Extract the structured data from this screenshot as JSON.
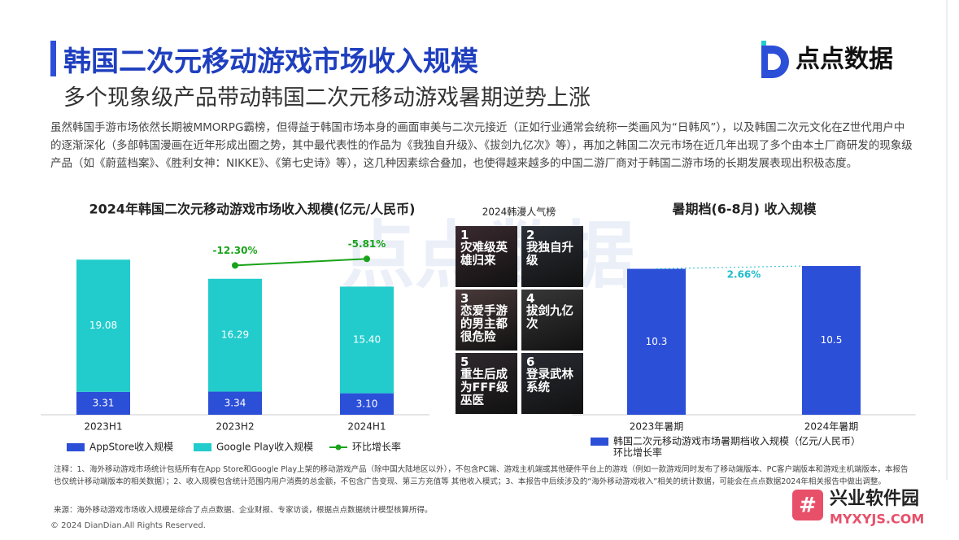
{
  "header": {
    "title": "韩国二次元移动游戏市场收入规模",
    "subtitle": "多个现象级产品带动韩国二次元移动游戏暑期逆势上涨",
    "logo": "点点数据"
  },
  "paragraph": "虽然韩国手游市场依然长期被MMORPG霸榜，但得益于韩国市场本身的画面审美与二次元接近（正如行业通常会统称一类画风为“日韩风”），以及韩国二次元文化在Z世代用户中的逐渐深化（多部韩国漫画在近年形成出圈之势，其中最代表性的作品为《我独自升级》、《拔剑九亿次》等），再加之韩国二次元市场在近几年出现了多个由本土厂商研发的现象级产品（如《蔚蓝档案》、《胜利女神：NIKKE》、《第七史诗》等），这几种因素综合叠加，也使得越来越多的中国二游厂商对于韩国二游市场的长期发展表现出积极态度。",
  "chart_data": [
    {
      "type": "bar",
      "stacked": true,
      "title": "2024年韩国二次元移动游戏市场收入规模(亿元/人民币)",
      "categories": [
        "2023H1",
        "2023H2",
        "2024H1"
      ],
      "ylim": [
        0,
        27
      ],
      "y2lim": [
        -160,
        25
      ],
      "series": [
        {
          "name": "AppStore收入规模",
          "color": "#2c4fd8",
          "values": [
            3.31,
            3.34,
            3.1
          ],
          "value_labels": [
            "3.31",
            "3.34",
            "3.10"
          ]
        },
        {
          "name": "Google Play收入规模",
          "color": "#22cccc",
          "values": [
            19.08,
            16.29,
            15.4
          ],
          "value_labels": [
            "19.08",
            "16.29",
            "15.40"
          ]
        },
        {
          "name": "环比增长率",
          "type": "line",
          "axis": "y2",
          "color": "#1aa31a",
          "values": [
            null,
            -12.3,
            -5.81
          ],
          "value_labels": [
            null,
            "-12.30%",
            "-5.81%"
          ]
        }
      ]
    },
    {
      "type": "bar",
      "title": "暑期档(6-8月) 收入规模",
      "categories": [
        "2023年暑期",
        "2024年暑期"
      ],
      "ylim": [
        0,
        13.2
      ],
      "series": [
        {
          "name": "韩国二次元移动游戏市场暑期档收入规模（亿元/人民币）",
          "color": "#2c4fd8",
          "values": [
            10.3,
            10.5
          ]
        }
      ],
      "growth": {
        "name": "环比增长率",
        "value": 2.66,
        "label": "2.66%"
      }
    }
  ],
  "ranking": {
    "title": "2024韩漫人气榜",
    "items": [
      {
        "rank": 1,
        "title": "灾难级英雄归来"
      },
      {
        "rank": 2,
        "title": "我独自升级"
      },
      {
        "rank": 3,
        "title": "恋爱手游的男主都很危险"
      },
      {
        "rank": 4,
        "title": "拔剑九亿次"
      },
      {
        "rank": 5,
        "title": "重生后成为FFF级巫医"
      },
      {
        "rank": 6,
        "title": "登录武林系统"
      }
    ]
  },
  "notes": "注释：1、海外移动游戏市场统计包括所有在App Store和Google Play上架的移动游戏产品（除中国大陆地区以外），不包含PC端、游戏主机端或其他硬件平台上的游戏（例如一款游戏同时发布了移动端版本、PC客户端版本和游戏主机端版本，本报告也仅统计移动端版本的相关数据）；2、收入规模包含统计范围内用户消费的总金额，不包含广告变现、第三方充值等 其他收入模式；3、本报告中后续涉及的“海外移动游戏收入”相关的统计数据，可能会在点点数据2024年相关报告中做出调整。",
  "source": "来源：海外移动游戏市场收入规模是综合了点点数据、企业财报、专家访谈，根据点点数据统计模型核算所得。",
  "footer": "© 2024 DianDian.All Rights Reserved.",
  "watermark": {
    "brand": "点点数据",
    "site_name": "兴业软件园",
    "site_url": "MYXYJS.COM"
  }
}
